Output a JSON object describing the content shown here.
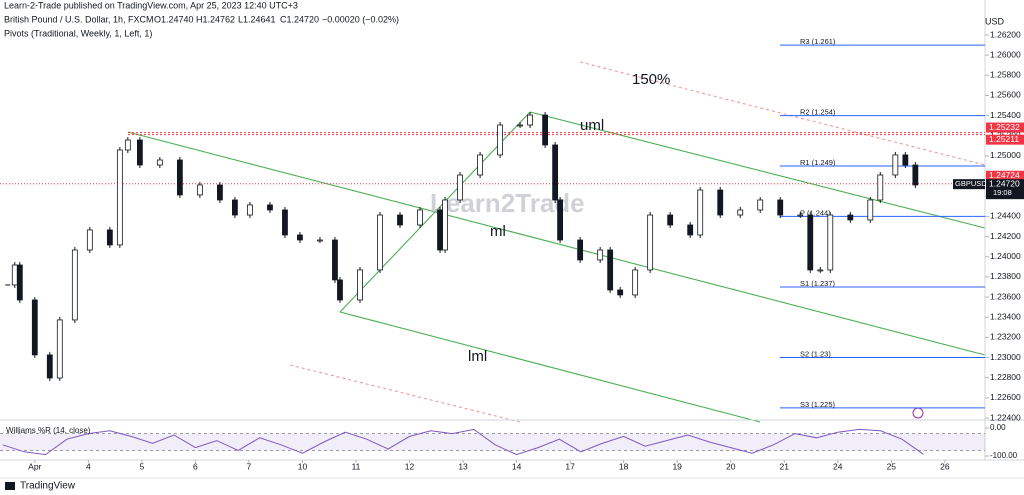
{
  "header": {
    "publisher": "Learn-2-Trade published on TradingView.com, Apr 25, 2023 12:40 UTC+3",
    "symbol": "British Pound / U.S. Dollar, 1h, FXCM",
    "ohlc": [
      "O1.24740",
      "H1.24762",
      "L1.24641",
      "C1.24720",
      "−0.00020 (−0.02%)"
    ],
    "indicator": "Pivots (Traditional, Weekly, 1, Left, 1)",
    "currency": "USD",
    "watermark": "Learn2Trade",
    "footer": "TradingView"
  },
  "chart_data": {
    "type": "candlestick",
    "xlim": [
      -0.65,
      17.75
    ],
    "ylim": [
      1.224,
      1.262
    ],
    "xticks": [
      {
        "value": 0,
        "label": "Apr"
      },
      {
        "value": 1,
        "label": "4"
      },
      {
        "value": 2,
        "label": "5"
      },
      {
        "value": 3,
        "label": "6"
      },
      {
        "value": 4,
        "label": "7"
      },
      {
        "value": 5,
        "label": "10"
      },
      {
        "value": 6,
        "label": "11"
      },
      {
        "value": 7,
        "label": "12"
      },
      {
        "value": 8,
        "label": "13"
      },
      {
        "value": 9,
        "label": "14"
      },
      {
        "value": 10,
        "label": "17"
      },
      {
        "value": 11,
        "label": "18"
      },
      {
        "value": 12,
        "label": "19"
      },
      {
        "value": 13,
        "label": "20"
      },
      {
        "value": 14,
        "label": "21"
      },
      {
        "value": 15,
        "label": "24"
      },
      {
        "value": 16,
        "label": "25"
      },
      {
        "value": 17,
        "label": "26"
      }
    ],
    "yticks": [
      {
        "value": 1.262,
        "label": "1.26200"
      },
      {
        "value": 1.26,
        "label": "1.26000"
      },
      {
        "value": 1.258,
        "label": "1.25800"
      },
      {
        "value": 1.256,
        "label": "1.25600"
      },
      {
        "value": 1.254,
        "label": "1.25400"
      },
      {
        "value": 1.252,
        "label": "1.25200"
      },
      {
        "value": 1.25,
        "label": "1.25000"
      },
      {
        "value": 1.248,
        "label": "1.24800"
      },
      {
        "value": 1.246,
        "label": "1.24600"
      },
      {
        "value": 1.244,
        "label": "1.24400"
      },
      {
        "value": 1.242,
        "label": "1.24200"
      },
      {
        "value": 1.24,
        "label": "1.24000"
      },
      {
        "value": 1.238,
        "label": "1.23800"
      },
      {
        "value": 1.236,
        "label": "1.23600"
      },
      {
        "value": 1.234,
        "label": "1.23400"
      },
      {
        "value": 1.232,
        "label": "1.23200"
      },
      {
        "value": 1.23,
        "label": "1.23000"
      },
      {
        "value": 1.228,
        "label": "1.22800"
      },
      {
        "value": 1.226,
        "label": "1.22600"
      },
      {
        "value": 1.224,
        "label": "1.22400"
      }
    ],
    "grid": false,
    "series": [
      {
        "name": "GBPUSD",
        "up_color": "#ffffff",
        "down_color": "#131722",
        "x": [
          -0.505,
          -0.374,
          -0.28,
          0,
          0.28,
          0.467,
          0.748,
          1.028,
          1.402,
          1.589,
          1.738,
          1.963,
          2.336,
          2.71,
          3.084,
          3.458,
          3.738,
          4.019,
          4.393,
          4.673,
          4.953,
          5.327,
          5.607,
          5.701,
          6.075,
          6.449,
          6.822,
          7.196,
          7.57,
          7.664,
          7.944,
          8.318,
          8.692,
          9.065,
          9.252,
          9.533,
          9.72,
          9.813,
          10.187,
          10.561,
          10.748,
          10.935,
          11.215,
          11.495,
          11.869,
          12.243,
          12.43,
          12.804,
          13.178,
          13.551,
          13.925,
          14.299,
          14.486,
          14.673,
          14.86,
          15.234,
          15.607,
          15.794,
          16.075,
          16.262,
          16.449
        ],
        "values": [
          1.2372,
          1.23918,
          1.23571,
          1.23026,
          1.22797,
          1.23373,
          1.24067,
          1.24266,
          1.24117,
          1.25059,
          1.25158,
          1.2491,
          1.2496,
          1.24613,
          1.24712,
          1.24563,
          1.24414,
          1.24514,
          1.24464,
          1.24216,
          1.24166,
          1.24166,
          1.2377,
          1.23571,
          1.23869,
          1.24414,
          1.24315,
          1.24464,
          1.24067,
          1.24563,
          1.24811,
          1.2501,
          1.25307,
          1.25307,
          1.25406,
          1.25109,
          1.24563,
          1.24166,
          1.23968,
          1.24067,
          1.2367,
          1.23621,
          1.23869,
          1.24414,
          1.24315,
          1.24216,
          1.24662,
          1.24414,
          1.24464,
          1.24563,
          1.24414,
          1.24414,
          1.23869,
          1.23869,
          1.24414,
          1.24365,
          1.24563,
          1.24811,
          1.2501,
          1.2491,
          1.24712
        ]
      }
    ],
    "pivots": [
      {
        "label": "R3 (1.261)",
        "value": 1.261
      },
      {
        "label": "R2 (1.254)",
        "value": 1.254
      },
      {
        "label": "R1 (1.249)",
        "value": 1.249
      },
      {
        "label": "P (1.244)",
        "value": 1.244
      },
      {
        "label": "S1 (1.237)",
        "value": 1.237
      },
      {
        "label": "S2 (1.23)",
        "value": 1.23
      },
      {
        "label": "S3 (1.225)",
        "value": 1.225
      }
    ],
    "pivot_color": "#2962ff",
    "levels": [
      {
        "value": 1.25232,
        "label": "1.25232"
      },
      {
        "value": 1.25211,
        "label": "1.25211"
      }
    ],
    "level_color": "#f23645",
    "current": {
      "value": 1.24724,
      "label": "1.24724"
    },
    "last": {
      "symbol": "GBPUSD",
      "value": 1.2472,
      "label": "1.24720",
      "time": "19:08"
    },
    "annotations": [
      "150%",
      "uml",
      "ml",
      "lml"
    ],
    "oscillator": {
      "name": "Williams %R (14, close)",
      "color": "#7e57c2",
      "ylim": [
        -100,
        0
      ],
      "yticks": [
        {
          "value": 0,
          "label": "0.00"
        },
        {
          "value": -100,
          "label": "-100.00"
        }
      ],
      "levels": [
        -20,
        -80
      ],
      "x": [
        -0.6,
        -0.2,
        0.2,
        0.6,
        1,
        1.4,
        1.8,
        2.2,
        2.6,
        3,
        3.4,
        3.8,
        4.2,
        4.6,
        5,
        5.4,
        5.8,
        6.2,
        6.6,
        7,
        7.4,
        7.8,
        8.2,
        8.6,
        9,
        9.4,
        9.8,
        10.2,
        10.6,
        11,
        11.4,
        11.8,
        12.2,
        12.6,
        13,
        13.4,
        13.8,
        14.2,
        14.6,
        15,
        15.4,
        15.8,
        16.2,
        16.6
      ],
      "values": [
        -60,
        -85,
        -95,
        -40,
        -20,
        -10,
        -30,
        -55,
        -25,
        -70,
        -45,
        -80,
        -35,
        -60,
        -90,
        -50,
        -15,
        -40,
        -75,
        -30,
        -10,
        -20,
        -5,
        -60,
        -95,
        -70,
        -40,
        -85,
        -55,
        -30,
        -65,
        -45,
        -25,
        -50,
        -70,
        -90,
        -60,
        -20,
        -35,
        -15,
        -5,
        -10,
        -40,
        -94
      ]
    }
  }
}
